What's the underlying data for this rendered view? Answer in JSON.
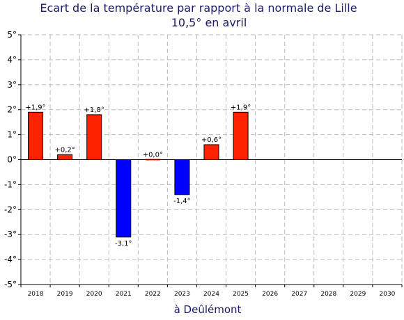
{
  "chart_data": {
    "type": "bar",
    "title": "Ecart de la température par rapport à la normale de Lille",
    "subtitle": "10,5° en avril",
    "xlabel": "à Deûlémont",
    "ylabel": "",
    "ylim": [
      -5,
      5
    ],
    "yticks": [
      "5°",
      "4°",
      "3°",
      "2°",
      "1°",
      "0°",
      "-1°",
      "-2°",
      "-3°",
      "-4°",
      "-5°"
    ],
    "categories": [
      "2018",
      "2019",
      "2020",
      "2021",
      "2022",
      "2023",
      "2024",
      "2025",
      "2026",
      "2027",
      "2028",
      "2029",
      "2030"
    ],
    "values": [
      1.9,
      0.2,
      1.8,
      -3.1,
      0.0,
      -1.4,
      0.6,
      1.9,
      null,
      null,
      null,
      null,
      null
    ],
    "data_labels": [
      "+1,9°",
      "+0,2°",
      "+1,8°",
      "-3,1°",
      "+0,0°",
      "-1,4°",
      "+0,6°",
      "+1,9°",
      "",
      "",
      "",
      "",
      ""
    ],
    "grid": true,
    "colors": {
      "positive": "#ff2200",
      "negative": "#0000ff",
      "title": "#1a1a66"
    }
  }
}
